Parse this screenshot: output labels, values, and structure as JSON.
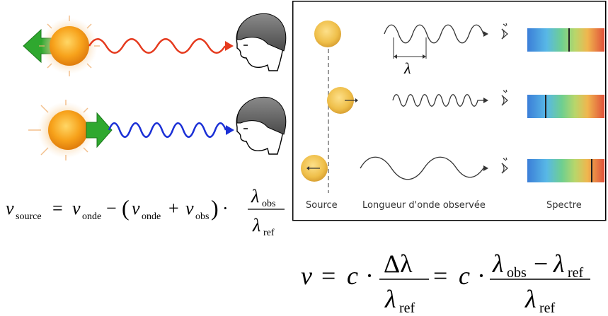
{
  "doppler_panel": {
    "lambda_symbol": "λ",
    "captions": {
      "source": "Source",
      "wavelength": "Longueur d'onde observée",
      "spectrum": "Spectre"
    }
  },
  "formula_source": {
    "lhs_var": "v",
    "lhs_sub": "source",
    "equals": "=",
    "v1": "v",
    "v1_sub": "onde",
    "minus": "−",
    "paren_open": "(",
    "v2": "v",
    "v2_sub": "onde",
    "plus": "+",
    "v3": "v",
    "v3_sub": "obs",
    "paren_close": ")",
    "dot": "·",
    "num": "λ",
    "num_sub": "obs",
    "den": "λ",
    "den_sub": "ref"
  },
  "formula_main": {
    "lhs": "v",
    "equals1": "=",
    "c1": "c",
    "dot1": "·",
    "frac1_num": "Δλ",
    "frac1_den": "λ",
    "frac1_den_sub": "ref",
    "equals2": "=",
    "c2": "c",
    "dot2": "·",
    "frac2_num_a": "λ",
    "frac2_num_a_sub": "obs",
    "frac2_minus": "−",
    "frac2_num_b": "λ",
    "frac2_num_b_sub": "ref",
    "frac2_den": "λ",
    "frac2_den_sub": "ref"
  },
  "colors": {
    "redshift_wave": "#e53a1e",
    "blueshift_wave": "#1a2fd6",
    "arrow_green": "#2fa82f",
    "sun": "#f7a21b",
    "panel_border": "#000000"
  },
  "icons": [
    "sun-icon",
    "observer-head-icon",
    "green-arrow-icon",
    "eye-icon",
    "spectrum-bar"
  ]
}
